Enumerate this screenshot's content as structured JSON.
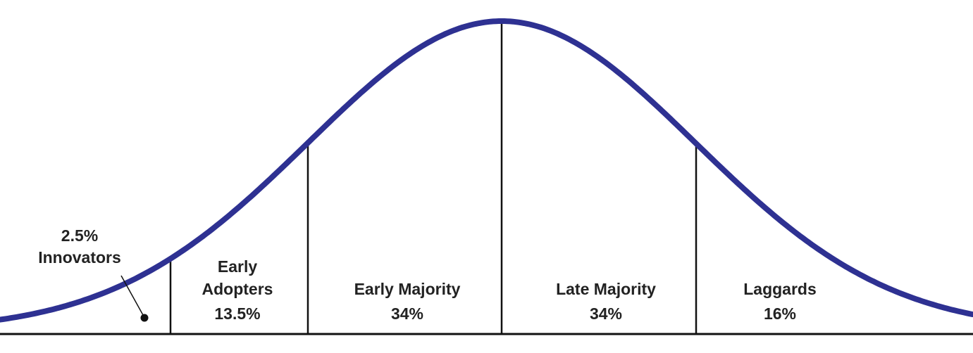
{
  "segments": [
    {
      "share": "2.5%",
      "name_lines": [
        "Innovators"
      ]
    },
    {
      "name_lines": [
        "Early",
        "Adopters"
      ],
      "share": "13.5%"
    },
    {
      "name_lines": [
        "Early Majority"
      ],
      "share": "34%"
    },
    {
      "name_lines": [
        "Late Majority"
      ],
      "share": "34%"
    },
    {
      "name_lines": [
        "Laggards"
      ],
      "share": "16%"
    }
  ]
}
